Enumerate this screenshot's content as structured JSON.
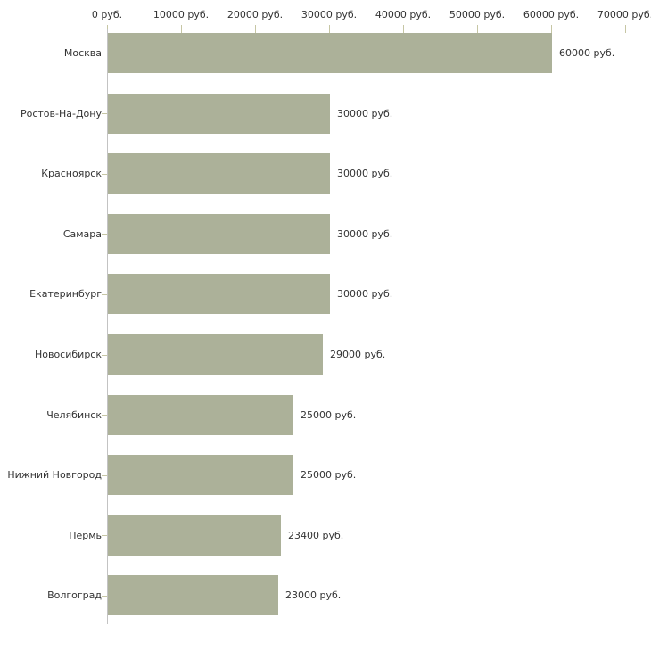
{
  "chart_data": {
    "type": "bar",
    "orientation": "horizontal",
    "title": "",
    "xlabel": "",
    "ylabel": "",
    "legend": false,
    "grid": false,
    "categories": [
      "Москва",
      "Ростов-На-Дону",
      "Красноярск",
      "Самара",
      "Екатеринбург",
      "Новосибирск",
      "Челябинск",
      "Нижний Новгород",
      "Пермь",
      "Волгоград"
    ],
    "values": [
      60000,
      30000,
      30000,
      30000,
      30000,
      29000,
      25000,
      25000,
      23400,
      23000
    ],
    "value_labels": [
      "60000 руб.",
      "30000 руб.",
      "30000 руб.",
      "30000 руб.",
      "30000 руб.",
      "29000 руб.",
      "25000 руб.",
      "25000 руб.",
      "23400 руб.",
      "23000 руб."
    ],
    "x_axis": {
      "position": "top",
      "min": 0,
      "max": 70000,
      "tick_step": 10000,
      "tick_labels": [
        "0 руб.",
        "10000 руб.",
        "20000 руб.",
        "30000 руб.",
        "40000 руб.",
        "50000 руб.",
        "60000 руб.",
        "70000 руб."
      ]
    },
    "colors": {
      "bar": "#acb199",
      "axis_line": "#c3c3c3",
      "tick": "#c6c6a4",
      "text": "#333333",
      "background": "#ffffff"
    }
  }
}
